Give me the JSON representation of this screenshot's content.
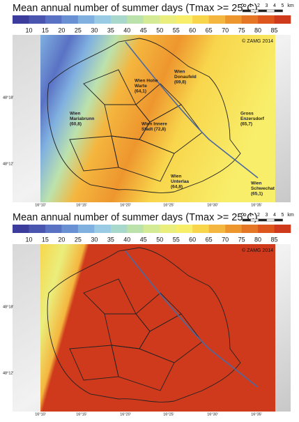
{
  "panels": [
    {
      "title": "Mean annual number of summer days (Tmax >= 25°C)",
      "copyright": "© ZAMG 2014",
      "stations": [
        {
          "lines": [
            "Wien Hohe",
            "Warte",
            "(64,1)"
          ]
        },
        {
          "lines": [
            "Wien",
            "Donaufeld",
            "(69,8)"
          ]
        },
        {
          "lines": [
            "Wien",
            "Mariabrunn",
            "(60,8)"
          ]
        },
        {
          "lines": [
            "Wien Innere",
            "Stadt (72,8)"
          ]
        },
        {
          "lines": [
            "Gross",
            "Enzersdorf",
            "(65,7)"
          ]
        },
        {
          "lines": [
            "Wien",
            "Unterlaa",
            "(64,8)"
          ]
        },
        {
          "lines": [
            "Wien",
            "Schwechat",
            "(65,1)"
          ]
        }
      ],
      "lon_labels": [
        "16°10'",
        "16°15'",
        "16°20'",
        "16°25'",
        "16°30'",
        "16°35'"
      ],
      "lat_labels": [
        "48°18'",
        "48°12'"
      ]
    },
    {
      "title": "Mean annual number of summer days (Tmax >= 25°C)",
      "copyright": "© ZAMG 2014",
      "lon_labels": [
        "16°10'",
        "16°15'",
        "16°20'",
        "16°25'",
        "16°30'",
        "16°35'"
      ],
      "lat_labels": [
        "48°18'",
        "48°12'"
      ]
    }
  ],
  "colorbar": {
    "labels": [
      10,
      15,
      20,
      25,
      30,
      35,
      40,
      45,
      50,
      55,
      60,
      65,
      70,
      75,
      80,
      85
    ],
    "colors": [
      "#3c3c9c",
      "#4a55b0",
      "#5a72c4",
      "#6a90d4",
      "#80b0e0",
      "#9acbe4",
      "#a8d8cc",
      "#bce2ac",
      "#d4ea94",
      "#eaee7c",
      "#f8ee6a",
      "#f8d64c",
      "#f4b63e",
      "#ee962e",
      "#e47626",
      "#dc561e",
      "#d03a1c"
    ]
  },
  "scale_bar": {
    "labels": [
      "0",
      "1",
      "2",
      "3",
      "4",
      "5",
      "km"
    ]
  }
}
